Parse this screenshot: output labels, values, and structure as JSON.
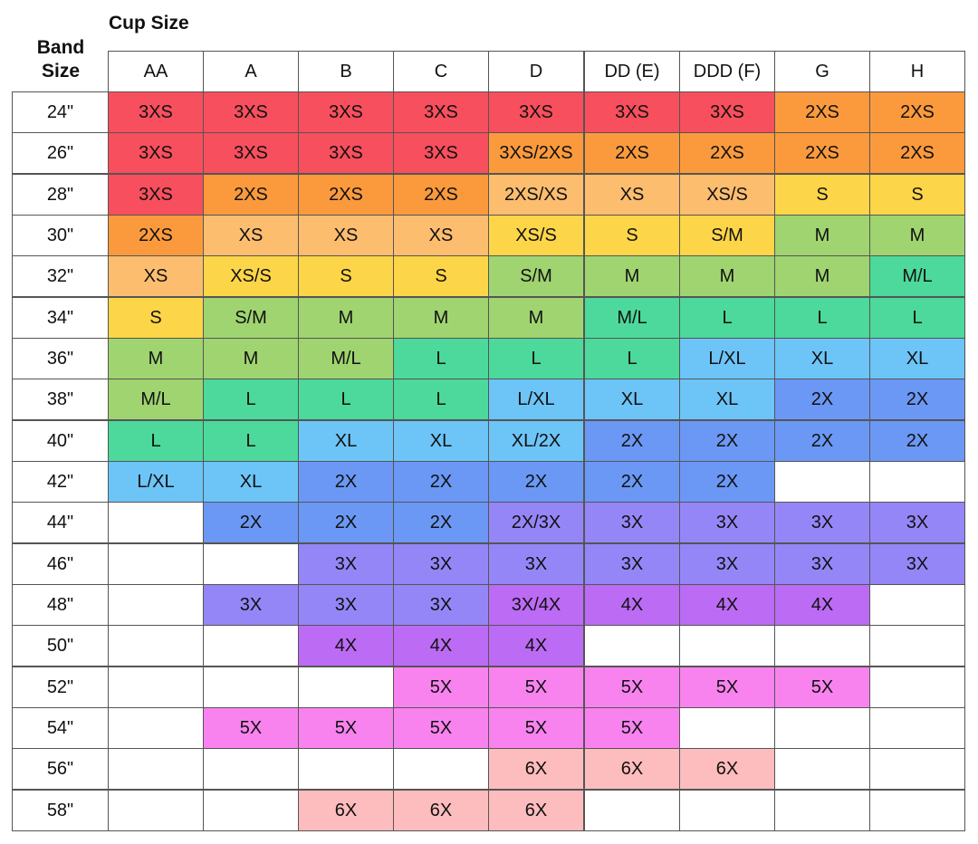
{
  "header": {
    "cup_title": "Cup Size",
    "band_title": "Band Size"
  },
  "table": {
    "columns": [
      "AA",
      "A",
      "B",
      "C",
      "D",
      "DD (E)",
      "DDD (F)",
      "G",
      "H"
    ],
    "rows": [
      {
        "band": "24\"",
        "cells": [
          "3XS",
          "3XS",
          "3XS",
          "3XS",
          "3XS",
          "3XS",
          "3XS",
          "2XS",
          "2XS"
        ],
        "colors": [
          "#f74f5d",
          "#f74f5d",
          "#f74f5d",
          "#f74f5d",
          "#f74f5d",
          "#f74f5d",
          "#f74f5d",
          "#fb9a3d",
          "#fb9a3d"
        ]
      },
      {
        "band": "26\"",
        "cells": [
          "3XS",
          "3XS",
          "3XS",
          "3XS",
          "3XS/2XS",
          "2XS",
          "2XS",
          "2XS",
          "2XS"
        ],
        "colors": [
          "#f74f5d",
          "#f74f5d",
          "#f74f5d",
          "#f74f5d",
          "#fb9a3d",
          "#fb9a3d",
          "#fb9a3d",
          "#fb9a3d",
          "#fb9a3d"
        ]
      },
      {
        "band": "28\"",
        "cells": [
          "3XS",
          "2XS",
          "2XS",
          "2XS",
          "2XS/XS",
          "XS",
          "XS/S",
          "S",
          "S"
        ],
        "colors": [
          "#f74f5d",
          "#fb9a3d",
          "#fb9a3d",
          "#fb9a3d",
          "#fdbd6f",
          "#fdbd6f",
          "#fdbd6f",
          "#fdd548",
          "#fdd548"
        ]
      },
      {
        "band": "30\"",
        "cells": [
          "2XS",
          "XS",
          "XS",
          "XS",
          "XS/S",
          "S",
          "S/M",
          "M",
          "M"
        ],
        "colors": [
          "#fb9a3d",
          "#fdbd6f",
          "#fdbd6f",
          "#fdbd6f",
          "#fdd548",
          "#fdd548",
          "#fdd548",
          "#9fd470",
          "#9fd470"
        ]
      },
      {
        "band": "32\"",
        "cells": [
          "XS",
          "XS/S",
          "S",
          "S",
          "S/M",
          "M",
          "M",
          "M",
          "M/L"
        ],
        "colors": [
          "#fdbd6f",
          "#fdd548",
          "#fdd548",
          "#fdd548",
          "#9fd470",
          "#9fd470",
          "#9fd470",
          "#9fd470",
          "#4cd99b"
        ]
      },
      {
        "band": "34\"",
        "cells": [
          "S",
          "S/M",
          "M",
          "M",
          "M",
          "M/L",
          "L",
          "L",
          "L"
        ],
        "colors": [
          "#fdd548",
          "#9fd470",
          "#9fd470",
          "#9fd470",
          "#9fd470",
          "#4cd99b",
          "#4cd99b",
          "#4cd99b",
          "#4cd99b"
        ]
      },
      {
        "band": "36\"",
        "cells": [
          "M",
          "M",
          "M/L",
          "L",
          "L",
          "L",
          "L/XL",
          "XL",
          "XL"
        ],
        "colors": [
          "#9fd470",
          "#9fd470",
          "#9fd470",
          "#4cd99b",
          "#4cd99b",
          "#4cd99b",
          "#6dc4f7",
          "#6dc4f7",
          "#6dc4f7"
        ]
      },
      {
        "band": "38\"",
        "cells": [
          "M/L",
          "L",
          "L",
          "L",
          "L/XL",
          "XL",
          "XL",
          "2X",
          "2X"
        ],
        "colors": [
          "#9fd470",
          "#4cd99b",
          "#4cd99b",
          "#4cd99b",
          "#6dc4f7",
          "#6dc4f7",
          "#6dc4f7",
          "#6b98f4",
          "#6b98f4"
        ]
      },
      {
        "band": "40\"",
        "cells": [
          "L",
          "L",
          "XL",
          "XL",
          "XL/2X",
          "2X",
          "2X",
          "2X",
          "2X"
        ],
        "colors": [
          "#4cd99b",
          "#4cd99b",
          "#6dc4f7",
          "#6dc4f7",
          "#6dc4f7",
          "#6b98f4",
          "#6b98f4",
          "#6b98f4",
          "#6b98f4"
        ]
      },
      {
        "band": "42\"",
        "cells": [
          "L/XL",
          "XL",
          "2X",
          "2X",
          "2X",
          "2X",
          "2X",
          null,
          null
        ],
        "colors": [
          "#6dc4f7",
          "#6dc4f7",
          "#6b98f4",
          "#6b98f4",
          "#6b98f4",
          "#6b98f4",
          "#6b98f4",
          null,
          null
        ]
      },
      {
        "band": "44\"",
        "cells": [
          null,
          "2X",
          "2X",
          "2X",
          "2X/3X",
          "3X",
          "3X",
          "3X",
          "3X"
        ],
        "colors": [
          null,
          "#6b98f4",
          "#6b98f4",
          "#6b98f4",
          "#9586f8",
          "#9586f8",
          "#9586f8",
          "#9586f8",
          "#9586f8"
        ]
      },
      {
        "band": "46\"",
        "cells": [
          null,
          null,
          "3X",
          "3X",
          "3X",
          "3X",
          "3X",
          "3X",
          "3X"
        ],
        "colors": [
          null,
          null,
          "#9586f8",
          "#9586f8",
          "#9586f8",
          "#9586f8",
          "#9586f8",
          "#9586f8",
          "#9586f8"
        ]
      },
      {
        "band": "48\"",
        "cells": [
          null,
          "3X",
          "3X",
          "3X",
          "3X/4X",
          "4X",
          "4X",
          "4X",
          null
        ],
        "colors": [
          null,
          "#9586f8",
          "#9586f8",
          "#9586f8",
          "#bc6bf5",
          "#bc6bf5",
          "#bc6bf5",
          "#bc6bf5",
          null
        ]
      },
      {
        "band": "50\"",
        "cells": [
          null,
          null,
          "4X",
          "4X",
          "4X",
          null,
          null,
          null,
          null
        ],
        "colors": [
          null,
          null,
          "#bc6bf5",
          "#bc6bf5",
          "#bc6bf5",
          null,
          null,
          null,
          null
        ]
      },
      {
        "band": "52\"",
        "cells": [
          null,
          null,
          null,
          "5X",
          "5X",
          "5X",
          "5X",
          "5X",
          null
        ],
        "colors": [
          null,
          null,
          null,
          "#f883ef",
          "#f883ef",
          "#f883ef",
          "#f883ef",
          "#f883ef",
          null
        ]
      },
      {
        "band": "54\"",
        "cells": [
          null,
          "5X",
          "5X",
          "5X",
          "5X",
          "5X",
          null,
          null,
          null
        ],
        "colors": [
          null,
          "#f883ef",
          "#f883ef",
          "#f883ef",
          "#f883ef",
          "#f883ef",
          null,
          null,
          null
        ]
      },
      {
        "band": "56\"",
        "cells": [
          null,
          null,
          null,
          null,
          "6X",
          "6X",
          "6X",
          null,
          null
        ],
        "colors": [
          null,
          null,
          null,
          null,
          "#fdbcbd",
          "#fdbcbd",
          "#fdbcbd",
          null,
          null
        ]
      },
      {
        "band": "58\"",
        "cells": [
          null,
          null,
          "6X",
          "6X",
          "6X",
          null,
          null,
          null,
          null
        ],
        "colors": [
          null,
          null,
          "#fdbcbd",
          "#fdbcbd",
          "#fdbcbd",
          null,
          null,
          null,
          null
        ]
      }
    ]
  }
}
